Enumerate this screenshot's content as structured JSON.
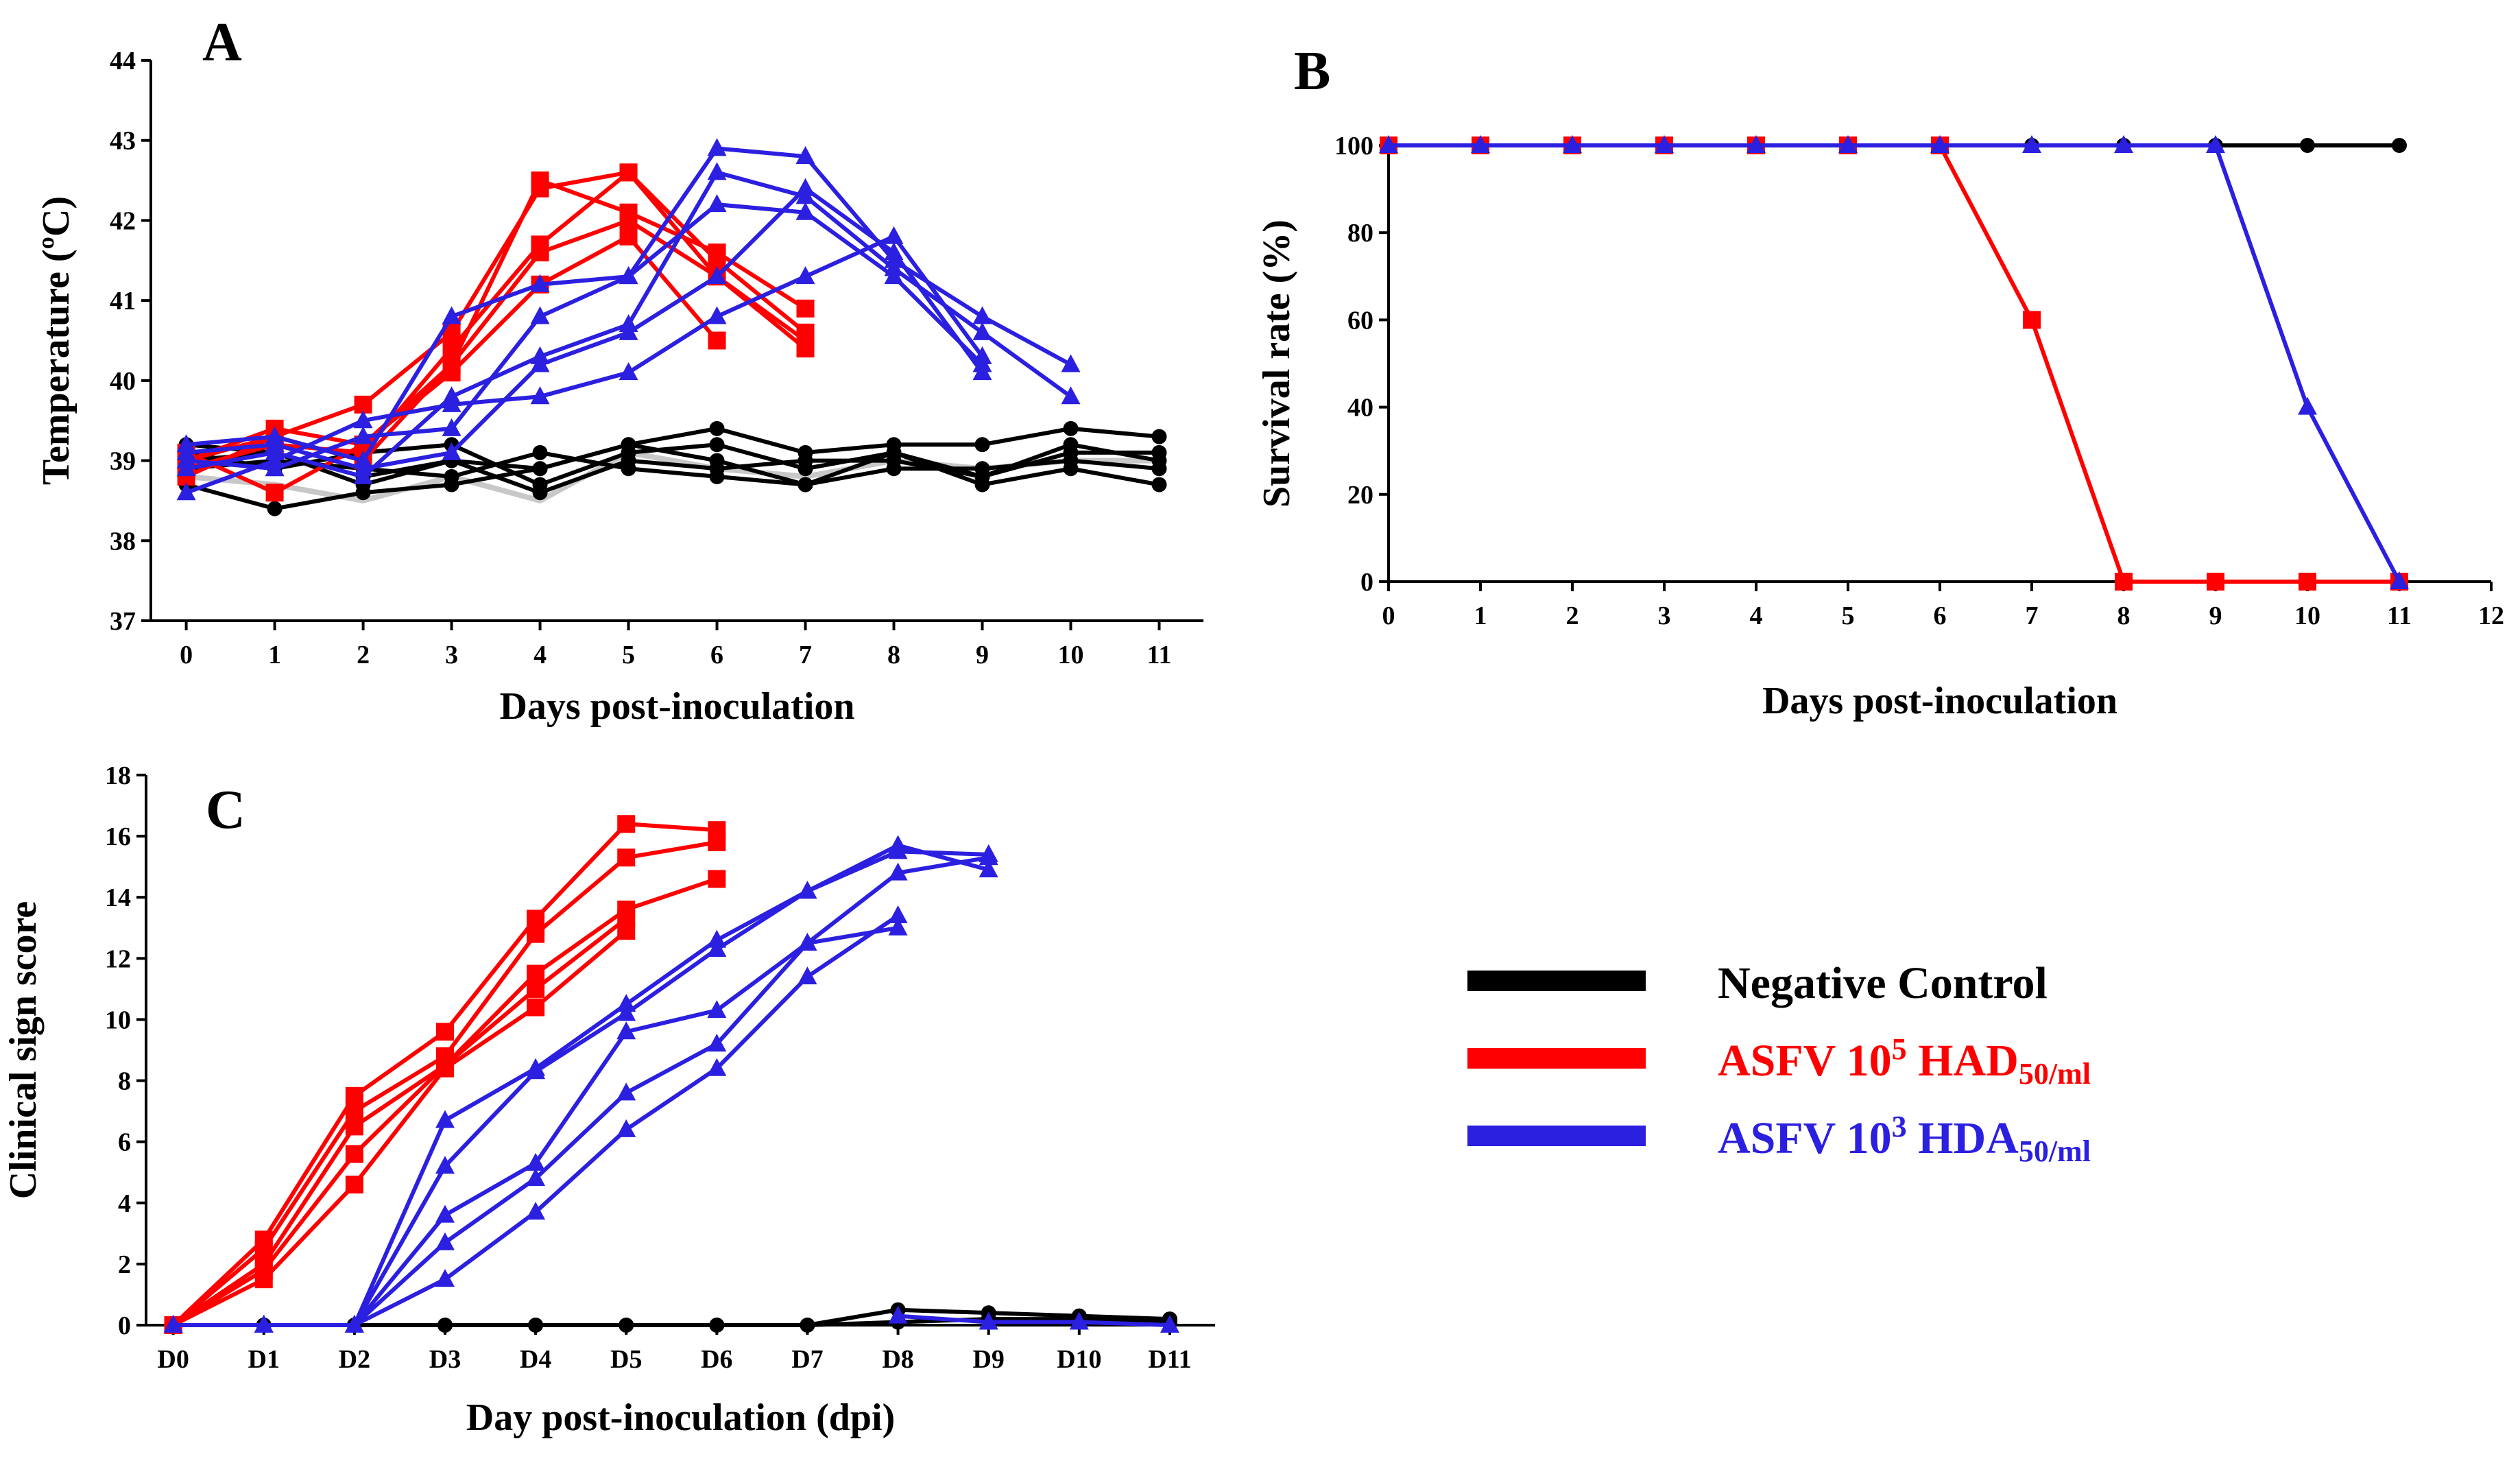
{
  "colors": {
    "black": "#000000",
    "red": "#ff0000",
    "blue": "#2b1fe0",
    "gray": "#c8c8c8"
  },
  "legend": {
    "items": [
      {
        "key": "black",
        "text": "Negative Control",
        "sub": ""
      },
      {
        "key": "red",
        "text": "ASFV 10",
        "sup": "5",
        "rest": " HAD",
        "sub": "50/ml"
      },
      {
        "key": "blue",
        "text": "ASFV 10",
        "sup": "3",
        "rest": " HDA",
        "sub": "50/ml"
      }
    ]
  },
  "chart_data": [
    {
      "panel": "A",
      "type": "line",
      "xlabel": "Days post-inoculation",
      "ylabel": "Temperature (ºC)",
      "ylim": [
        37,
        44
      ],
      "xlim": [
        -0.4,
        11.5
      ],
      "yticks": [
        37,
        38,
        39,
        40,
        41,
        42,
        43,
        44
      ],
      "xticks": [
        0,
        1,
        2,
        3,
        4,
        5,
        6,
        7,
        8,
        9,
        10,
        11
      ],
      "series": [
        {
          "group": "gray",
          "marker": "none",
          "x": [
            0,
            1,
            2,
            3,
            4,
            5,
            6,
            7,
            8,
            9,
            10,
            11
          ],
          "y": [
            38.8,
            38.7,
            38.5,
            38.8,
            38.5,
            39.1,
            38.9,
            38.8,
            39.0,
            38.9,
            39.0,
            39.0
          ]
        },
        {
          "group": "black",
          "marker": "circle",
          "x": [
            0,
            1,
            2,
            3,
            4,
            5,
            6,
            7,
            8,
            9,
            10,
            11
          ],
          "y": [
            39.2,
            39.1,
            38.8,
            39.0,
            38.9,
            39.2,
            39.4,
            39.1,
            39.2,
            39.2,
            39.4,
            39.3
          ]
        },
        {
          "group": "black",
          "marker": "circle",
          "x": [
            0,
            1,
            2,
            3,
            4,
            5,
            6,
            7,
            8,
            9,
            10,
            11
          ],
          "y": [
            39.1,
            38.9,
            39.1,
            39.2,
            38.7,
            39.1,
            39.2,
            38.9,
            39.1,
            38.8,
            39.2,
            39.0
          ]
        },
        {
          "group": "black",
          "marker": "circle",
          "x": [
            0,
            1,
            2,
            3,
            4,
            5,
            6,
            7,
            8,
            9,
            10,
            11
          ],
          "y": [
            38.9,
            39.0,
            38.9,
            38.8,
            39.1,
            38.9,
            38.8,
            38.7,
            38.9,
            38.9,
            39.0,
            38.9
          ]
        },
        {
          "group": "black",
          "marker": "circle",
          "x": [
            0,
            1,
            2,
            3,
            4,
            5,
            6,
            7,
            8,
            9,
            10,
            11
          ],
          "y": [
            38.7,
            38.4,
            38.6,
            38.7,
            38.9,
            39.2,
            39.0,
            38.7,
            39.1,
            38.7,
            38.9,
            38.7
          ]
        },
        {
          "group": "black",
          "marker": "circle",
          "x": [
            0,
            1,
            2,
            3,
            4,
            5,
            6,
            7,
            8,
            9,
            10,
            11
          ],
          "y": [
            39.0,
            39.1,
            38.7,
            39.0,
            38.6,
            39.0,
            38.9,
            39.0,
            39.0,
            38.8,
            39.1,
            39.1
          ]
        },
        {
          "group": "red",
          "marker": "square",
          "x": [
            0,
            1,
            2,
            3,
            4,
            5,
            6,
            7
          ],
          "y": [
            39.0,
            39.3,
            39.7,
            40.6,
            42.4,
            42.6,
            41.3,
            40.4
          ]
        },
        {
          "group": "red",
          "marker": "square",
          "x": [
            0,
            1,
            2,
            3,
            4,
            5,
            6,
            7
          ],
          "y": [
            39.0,
            39.4,
            39.2,
            40.2,
            42.5,
            42.1,
            41.6,
            40.9
          ]
        },
        {
          "group": "red",
          "marker": "square",
          "x": [
            0,
            1,
            2,
            3,
            4,
            5,
            6,
            7
          ],
          "y": [
            38.9,
            39.2,
            39.1,
            40.4,
            41.7,
            42.6,
            41.5,
            40.6
          ]
        },
        {
          "group": "red",
          "marker": "square",
          "x": [
            0,
            1,
            2,
            3,
            4,
            5,
            6
          ],
          "y": [
            39.1,
            38.6,
            39.2,
            40.1,
            41.2,
            41.8,
            40.5
          ]
        },
        {
          "group": "red",
          "marker": "square",
          "x": [
            0,
            1,
            2,
            3,
            4,
            5,
            6,
            7
          ],
          "y": [
            38.8,
            39.3,
            39.0,
            40.2,
            41.6,
            42.0,
            41.3,
            40.5
          ]
        },
        {
          "group": "blue",
          "marker": "triangle",
          "x": [
            0,
            1,
            2,
            3,
            4,
            5,
            6,
            7,
            8,
            9,
            10
          ],
          "y": [
            39.2,
            39.3,
            39.0,
            40.8,
            41.2,
            41.3,
            42.9,
            42.8,
            41.5,
            40.8,
            40.2
          ]
        },
        {
          "group": "blue",
          "marker": "triangle",
          "x": [
            0,
            1,
            2,
            3,
            4,
            5,
            6,
            7,
            8,
            9,
            10
          ],
          "y": [
            38.9,
            39.1,
            38.8,
            39.8,
            40.3,
            40.7,
            42.6,
            42.3,
            41.4,
            40.6,
            39.8
          ]
        },
        {
          "group": "blue",
          "marker": "triangle",
          "x": [
            0,
            1,
            2,
            3,
            4,
            5,
            6,
            7,
            8,
            9
          ],
          "y": [
            38.6,
            39.0,
            39.5,
            39.7,
            39.8,
            40.1,
            40.8,
            41.3,
            41.8,
            40.3
          ]
        },
        {
          "group": "blue",
          "marker": "triangle",
          "x": [
            0,
            1,
            2,
            3,
            4,
            5,
            6,
            7,
            8,
            9
          ],
          "y": [
            39.0,
            38.9,
            39.3,
            39.4,
            40.8,
            41.3,
            42.2,
            42.1,
            41.3,
            40.2
          ]
        },
        {
          "group": "blue",
          "marker": "triangle",
          "x": [
            0,
            1,
            2,
            3,
            4,
            5,
            6,
            7,
            8,
            9
          ],
          "y": [
            39.1,
            39.2,
            38.9,
            39.1,
            40.2,
            40.6,
            41.3,
            42.4,
            41.6,
            40.1
          ]
        }
      ]
    },
    {
      "panel": "B",
      "type": "line",
      "xlabel": "Days post-inoculation",
      "ylabel": "Survival rate (%)",
      "ylim": [
        0,
        100
      ],
      "xlim": [
        0,
        12
      ],
      "yticks": [
        0,
        20,
        40,
        60,
        80,
        100
      ],
      "xticks": [
        0,
        1,
        2,
        3,
        4,
        5,
        6,
        7,
        8,
        9,
        10,
        11,
        12
      ],
      "series": [
        {
          "group": "black",
          "marker": "circle",
          "x": [
            0,
            1,
            2,
            3,
            4,
            5,
            6,
            7,
            8,
            9,
            10,
            11
          ],
          "y": [
            100,
            100,
            100,
            100,
            100,
            100,
            100,
            100,
            100,
            100,
            100,
            100
          ]
        },
        {
          "group": "red",
          "marker": "square",
          "x": [
            0,
            1,
            2,
            3,
            4,
            5,
            6,
            7,
            8,
            9,
            10,
            11
          ],
          "y": [
            100,
            100,
            100,
            100,
            100,
            100,
            100,
            60,
            0,
            0,
            0,
            0
          ]
        },
        {
          "group": "blue",
          "marker": "triangle",
          "x": [
            0,
            1,
            2,
            3,
            4,
            5,
            6,
            7,
            8,
            9,
            10,
            11
          ],
          "y": [
            100,
            100,
            100,
            100,
            100,
            100,
            100,
            100,
            100,
            100,
            40,
            0
          ]
        }
      ]
    },
    {
      "panel": "C",
      "type": "line",
      "xlabel": "Day post-inoculation (dpi)",
      "ylabel": "Clinical sign score",
      "ylim": [
        0,
        18
      ],
      "xlim": [
        -0.3,
        11.5
      ],
      "yticks": [
        0,
        2,
        4,
        6,
        8,
        10,
        12,
        14,
        16,
        18
      ],
      "categories": [
        "D0",
        "D1",
        "D2",
        "D3",
        "D4",
        "D5",
        "D6",
        "D7",
        "D8",
        "D9",
        "D10",
        "D11"
      ],
      "series": [
        {
          "group": "black",
          "marker": "circle",
          "x": [
            0,
            1,
            2,
            3,
            4,
            5,
            6,
            7,
            8,
            9,
            10,
            11
          ],
          "y": [
            0,
            0,
            0,
            0,
            0,
            0,
            0,
            0,
            0.5,
            0.4,
            0.3,
            0.2
          ]
        },
        {
          "group": "black",
          "marker": "circle",
          "x": [
            0,
            1,
            2,
            3,
            4,
            5,
            6,
            7,
            8,
            9,
            10,
            11
          ],
          "y": [
            0,
            0,
            0,
            0,
            0,
            0,
            0,
            0,
            0.1,
            0.2,
            0.2,
            0.1
          ]
        },
        {
          "group": "red",
          "marker": "square",
          "x": [
            0,
            1,
            2,
            3,
            4,
            5,
            6
          ],
          "y": [
            0,
            2.8,
            7.5,
            9.6,
            13.3,
            16.4,
            16.2
          ]
        },
        {
          "group": "red",
          "marker": "square",
          "x": [
            0,
            1,
            2,
            3,
            4,
            5,
            6
          ],
          "y": [
            0,
            2.5,
            7.0,
            8.8,
            12.8,
            15.3,
            15.8
          ]
        },
        {
          "group": "red",
          "marker": "square",
          "x": [
            0,
            1,
            2,
            3,
            4,
            5,
            6
          ],
          "y": [
            0,
            2.0,
            6.5,
            8.5,
            11.5,
            13.6,
            14.6
          ]
        },
        {
          "group": "red",
          "marker": "square",
          "x": [
            0,
            1,
            2,
            3,
            4,
            5
          ],
          "y": [
            0,
            1.8,
            5.6,
            8.5,
            11.0,
            13.3
          ]
        },
        {
          "group": "red",
          "marker": "square",
          "x": [
            0,
            1,
            2,
            3,
            4,
            5
          ],
          "y": [
            0,
            1.5,
            4.6,
            8.4,
            10.4,
            12.9
          ]
        },
        {
          "group": "blue",
          "marker": "triangle",
          "x": [
            0,
            1,
            2,
            3,
            4,
            5,
            6,
            7,
            8,
            9
          ],
          "y": [
            0,
            0,
            0,
            6.7,
            8.4,
            10.5,
            12.6,
            14.2,
            15.7,
            14.9
          ]
        },
        {
          "group": "blue",
          "marker": "triangle",
          "x": [
            0,
            1,
            2,
            3,
            4,
            5,
            6,
            7,
            8,
            9
          ],
          "y": [
            0,
            0,
            0,
            5.2,
            8.3,
            10.2,
            12.3,
            14.2,
            15.5,
            15.4
          ]
        },
        {
          "group": "blue",
          "marker": "triangle",
          "x": [
            0,
            1,
            2,
            3,
            4,
            5,
            6,
            7,
            8,
            9
          ],
          "y": [
            0,
            0,
            0,
            3.6,
            5.3,
            9.6,
            10.3,
            12.5,
            14.8,
            15.3
          ]
        },
        {
          "group": "blue",
          "marker": "triangle",
          "x": [
            0,
            1,
            2,
            3,
            4,
            5,
            6,
            7,
            8
          ],
          "y": [
            0,
            0,
            0,
            2.7,
            4.8,
            7.6,
            9.2,
            12.5,
            13.0
          ]
        },
        {
          "group": "blue",
          "marker": "triangle",
          "x": [
            0,
            1,
            2,
            3,
            4,
            5,
            6,
            7,
            8
          ],
          "y": [
            0,
            0,
            0,
            1.5,
            3.7,
            6.4,
            8.4,
            11.4,
            13.4
          ]
        },
        {
          "group": "blue",
          "marker": "triangle",
          "x": [
            8,
            9,
            10,
            11
          ],
          "y": [
            0.3,
            0.1,
            0.1,
            0.0
          ]
        }
      ]
    }
  ]
}
